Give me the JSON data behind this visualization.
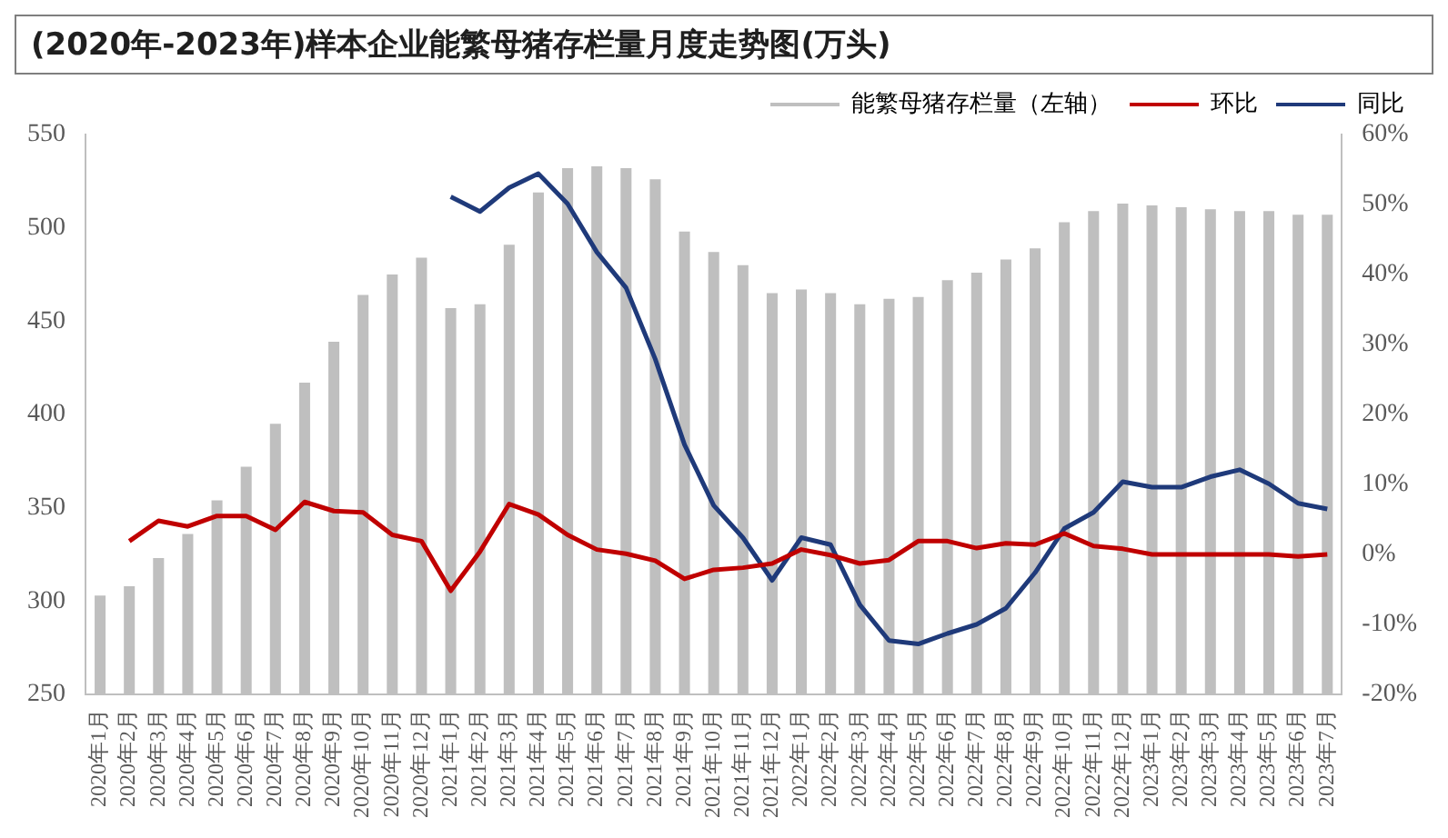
{
  "chart_data": {
    "type": "bar",
    "title": "(2020年-2023年)样本企业能繁母猪存栏量月度走势图(万头)",
    "categories": [
      "2020年1月",
      "2020年2月",
      "2020年3月",
      "2020年4月",
      "2020年5月",
      "2020年6月",
      "2020年7月",
      "2020年8月",
      "2020年9月",
      "2020年10月",
      "2020年11月",
      "2020年12月",
      "2021年1月",
      "2021年2月",
      "2021年3月",
      "2021年4月",
      "2021年5月",
      "2021年6月",
      "2021年7月",
      "2021年8月",
      "2021年9月",
      "2021年10月",
      "2021年11月",
      "2021年12月",
      "2022年1月",
      "2022年2月",
      "2022年3月",
      "2022年4月",
      "2022年5月",
      "2022年6月",
      "2022年7月",
      "2022年8月",
      "2022年9月",
      "2022年10月",
      "2022年11月",
      "2022年12月",
      "2023年1月",
      "2023年2月",
      "2023年3月",
      "2023年4月",
      "2023年5月",
      "2023年6月",
      "2023年7月"
    ],
    "series": [
      {
        "name": "能繁母猪存栏量（左轴）",
        "color": "#bfbfbf",
        "values": [
          303,
          308,
          323,
          336,
          354,
          372,
          395,
          417,
          439,
          464,
          475,
          484,
          457,
          459,
          491,
          519,
          532,
          533,
          532,
          526,
          498,
          487,
          480,
          465,
          467,
          465,
          459,
          462,
          463,
          472,
          476,
          483,
          489,
          503,
          509,
          513,
          512,
          511,
          510,
          509,
          509,
          507,
          507
        ]
      },
      {
        "name": "环比",
        "type": "line",
        "axis": "y2",
        "color": "#c00000",
        "values": [
          null,
          1.9,
          4.8,
          4.0,
          5.5,
          5.5,
          3.5,
          7.5,
          6.2,
          6.0,
          2.8,
          1.9,
          -5.2,
          0.4,
          7.2,
          5.7,
          2.8,
          0.7,
          0.1,
          -0.9,
          -3.5,
          -2.2,
          -1.9,
          -1.3,
          0.7,
          -0.1,
          -1.3,
          -0.8,
          1.9,
          1.9,
          0.9,
          1.6,
          1.4,
          3.0,
          1.2,
          0.8,
          0,
          0,
          0,
          0,
          0,
          -0.3,
          0
        ]
      },
      {
        "name": "同比",
        "type": "line",
        "axis": "y2",
        "color": "#1f3a7a",
        "values": [
          null,
          null,
          null,
          null,
          null,
          null,
          null,
          null,
          null,
          null,
          null,
          null,
          51.1,
          49.0,
          52.4,
          54.4,
          50.1,
          43.2,
          38.1,
          27.9,
          15.7,
          7.0,
          2.4,
          -3.7,
          2.4,
          1.4,
          -7.2,
          -12.3,
          -12.8,
          -11.3,
          -10.0,
          -7.7,
          -2.6,
          3.7,
          6.0,
          10.4,
          9.6,
          9.6,
          11.1,
          12.1,
          10.1,
          7.3,
          6.5
        ]
      }
    ],
    "ylim": [
      250,
      550
    ],
    "yticks": [
      250,
      300,
      350,
      400,
      450,
      500,
      550
    ],
    "y2lim": [
      -20,
      60
    ],
    "y2ticks": [
      {
        "value": -20,
        "label": "-20%"
      },
      {
        "value": -10,
        "label": "-10%"
      },
      {
        "value": 0,
        "label": "0%"
      },
      {
        "value": 10,
        "label": "10%"
      },
      {
        "value": 20,
        "label": "20%"
      },
      {
        "value": 30,
        "label": "30%"
      },
      {
        "value": 40,
        "label": "40%"
      },
      {
        "value": 50,
        "label": "50%"
      },
      {
        "value": 60,
        "label": "60%"
      }
    ],
    "legend": "top",
    "grid": false,
    "marker": "none",
    "line_style": "solid"
  }
}
